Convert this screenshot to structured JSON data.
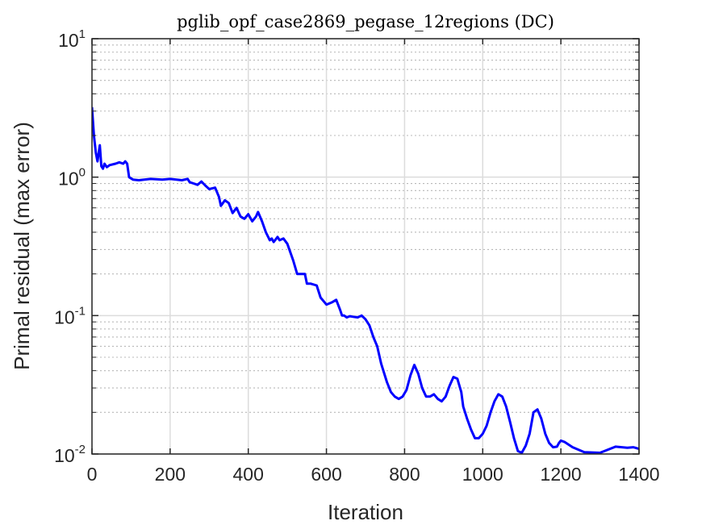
{
  "chart_data": {
    "type": "line",
    "title": "pglib_opf_case2869_pegase_12regions (DC)",
    "xlabel": "Iteration",
    "ylabel": "Primal residual (max error)",
    "xlim": [
      0,
      1400
    ],
    "ylim": [
      0.01,
      10
    ],
    "yscale": "log",
    "xticks": [
      0,
      200,
      400,
      600,
      800,
      1000,
      1200,
      1400
    ],
    "xtick_labels": [
      "0",
      "200",
      "400",
      "600",
      "800",
      "1000",
      "1200",
      "1400"
    ],
    "yticks": [
      0.01,
      0.1,
      1,
      10
    ],
    "ytick_labels": [
      {
        "base": "10",
        "exp": "-2"
      },
      {
        "base": "10",
        "exp": "-1"
      },
      {
        "base": "10",
        "exp": "0"
      },
      {
        "base": "10",
        "exp": "1"
      }
    ],
    "grid": true,
    "minor_grid": true,
    "line_color": "#0000ff",
    "series": [
      {
        "x": [
          0,
          5,
          10,
          14,
          20,
          24,
          28,
          32,
          38,
          45,
          60,
          70,
          80,
          85,
          90,
          95,
          105,
          120,
          150,
          180,
          200,
          230,
          245,
          250,
          260,
          270,
          280,
          290,
          300,
          315,
          325,
          330,
          340,
          350,
          360,
          370,
          380,
          390,
          400,
          410,
          420,
          425,
          435,
          445,
          455,
          460,
          465,
          475,
          480,
          490,
          500,
          505,
          515,
          525,
          545,
          550,
          560,
          575,
          585,
          600,
          615,
          625,
          635,
          640,
          645,
          652,
          660,
          668,
          680,
          690,
          700,
          710,
          720,
          730,
          740,
          755,
          765,
          775,
          785,
          795,
          805,
          815,
          825,
          835,
          845,
          855,
          865,
          875,
          885,
          895,
          905,
          915,
          925,
          935,
          945,
          950,
          960,
          970,
          980,
          990,
          1000,
          1010,
          1020,
          1030,
          1040,
          1050,
          1060,
          1070,
          1080,
          1090,
          1100,
          1110,
          1120,
          1130,
          1140,
          1150,
          1160,
          1170,
          1180,
          1190,
          1195,
          1200,
          1210,
          1230,
          1260,
          1300,
          1340,
          1370,
          1385,
          1390,
          1395,
          1400
        ],
        "y": [
          3.2,
          2.0,
          1.5,
          1.3,
          1.7,
          1.2,
          1.15,
          1.25,
          1.18,
          1.22,
          1.25,
          1.28,
          1.25,
          1.3,
          1.25,
          1.0,
          0.96,
          0.95,
          0.97,
          0.96,
          0.97,
          0.95,
          0.97,
          0.92,
          0.9,
          0.88,
          0.93,
          0.87,
          0.82,
          0.84,
          0.72,
          0.62,
          0.68,
          0.65,
          0.55,
          0.6,
          0.52,
          0.5,
          0.54,
          0.48,
          0.52,
          0.56,
          0.48,
          0.4,
          0.35,
          0.36,
          0.34,
          0.37,
          0.35,
          0.36,
          0.33,
          0.3,
          0.25,
          0.2,
          0.2,
          0.17,
          0.17,
          0.165,
          0.135,
          0.12,
          0.125,
          0.13,
          0.11,
          0.1,
          0.1,
          0.097,
          0.099,
          0.098,
          0.097,
          0.1,
          0.094,
          0.085,
          0.07,
          0.06,
          0.045,
          0.033,
          0.028,
          0.026,
          0.025,
          0.026,
          0.029,
          0.037,
          0.044,
          0.038,
          0.03,
          0.026,
          0.026,
          0.027,
          0.025,
          0.024,
          0.026,
          0.031,
          0.036,
          0.035,
          0.028,
          0.022,
          0.018,
          0.015,
          0.013,
          0.013,
          0.014,
          0.016,
          0.02,
          0.024,
          0.027,
          0.026,
          0.022,
          0.017,
          0.013,
          0.0105,
          0.0102,
          0.0115,
          0.014,
          0.02,
          0.021,
          0.018,
          0.014,
          0.012,
          0.0112,
          0.0113,
          0.012,
          0.0125,
          0.0122,
          0.0112,
          0.0103,
          0.0102,
          0.0113,
          0.0111,
          0.0112,
          0.0111,
          0.011,
          0.0109
        ]
      }
    ]
  }
}
